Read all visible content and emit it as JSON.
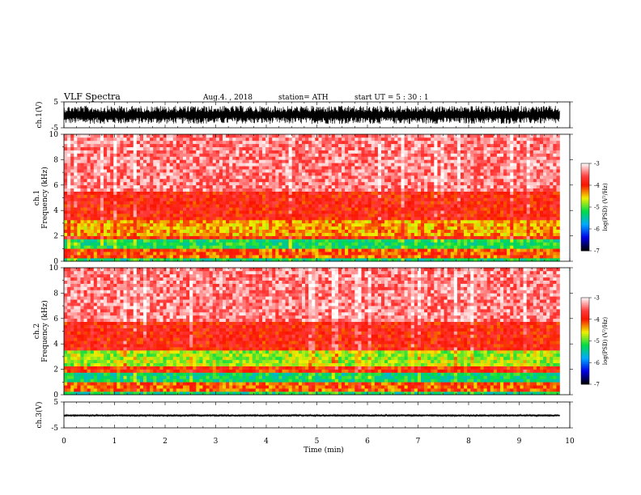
{
  "header": {
    "title": "VLF  Spectra",
    "date": "Aug.4.  , 2018",
    "station": "station= ATH",
    "start_ut": "start  UT  =    5  : 30 : 1"
  },
  "chart_data": [
    {
      "type": "line",
      "panel": "ch1-waveform",
      "ylabel": "ch.1(V)",
      "ylim": [
        -5,
        5
      ],
      "yticks": [
        "5",
        "-5"
      ],
      "xlim": [
        0,
        10
      ],
      "data_extent_min": [
        0,
        9.8
      ],
      "envelope_V": [
        -3.5,
        3.5
      ],
      "color": "#000000"
    },
    {
      "type": "heatmap",
      "panel": "ch1-spectrogram",
      "ylabel": "ch.1 Frequency (kHz)",
      "ylim": [
        0,
        10
      ],
      "yticks": [
        "0",
        "2",
        "4",
        "6",
        "8",
        "10"
      ],
      "xlim": [
        0,
        10
      ],
      "data_extent_min": [
        0,
        9.8
      ],
      "colorbar": {
        "label": "log(PSD) (V²/Hz)",
        "range": [
          -7,
          -3
        ],
        "ticks": [
          "-3",
          "-4",
          "-5",
          "-6",
          "-7"
        ]
      },
      "bands": [
        {
          "f": [
            0,
            0.3
          ],
          "level": -5.3
        },
        {
          "f": [
            0.3,
            0.9
          ],
          "level": -4.2
        },
        {
          "f": [
            0.9,
            1.7
          ],
          "level": -5.2
        },
        {
          "f": [
            1.7,
            2.0
          ],
          "level": -4.0
        },
        {
          "f": [
            2.0,
            3.3
          ],
          "level": -4.4
        },
        {
          "f": [
            3.3,
            5.5
          ],
          "level": -3.9
        },
        {
          "f": [
            5.5,
            10
          ],
          "level": -3.4
        }
      ]
    },
    {
      "type": "heatmap",
      "panel": "ch2-spectrogram",
      "ylabel": "ch.2 Frequency (kHz)",
      "ylim": [
        0,
        10
      ],
      "yticks": [
        "0",
        "2",
        "4",
        "6",
        "8",
        "10"
      ],
      "xlim": [
        0,
        10
      ],
      "data_extent_min": [
        0,
        9.8
      ],
      "colorbar": {
        "label": "log(PSD) (V²/Hz)",
        "range": [
          -7,
          -3
        ],
        "ticks": [
          "-3",
          "-4",
          "-5",
          "-6",
          "-7"
        ]
      },
      "bands": [
        {
          "f": [
            0,
            0.3
          ],
          "level": -5.3
        },
        {
          "f": [
            0.3,
            0.9
          ],
          "level": -4.2
        },
        {
          "f": [
            0.9,
            1.8
          ],
          "level": -5.3
        },
        {
          "f": [
            1.8,
            2.2
          ],
          "level": -4.0
        },
        {
          "f": [
            2.2,
            3.4
          ],
          "level": -4.8
        },
        {
          "f": [
            3.4,
            5.8
          ],
          "level": -3.9
        },
        {
          "f": [
            5.8,
            10
          ],
          "level": -3.4
        }
      ]
    },
    {
      "type": "line",
      "panel": "ch3-waveform",
      "ylabel": "ch.3(V)",
      "ylim": [
        -5,
        5
      ],
      "yticks": [
        "5",
        "-5"
      ],
      "xlim": [
        0,
        10
      ],
      "data_extent_min": [
        0,
        9.8
      ],
      "envelope_V": [
        -0.6,
        0.2
      ],
      "color": "#000000"
    }
  ],
  "xaxis": {
    "label": "Time  (min)",
    "ticks": [
      "0",
      "1",
      "2",
      "3",
      "4",
      "5",
      "6",
      "7",
      "8",
      "9",
      "10"
    ]
  }
}
